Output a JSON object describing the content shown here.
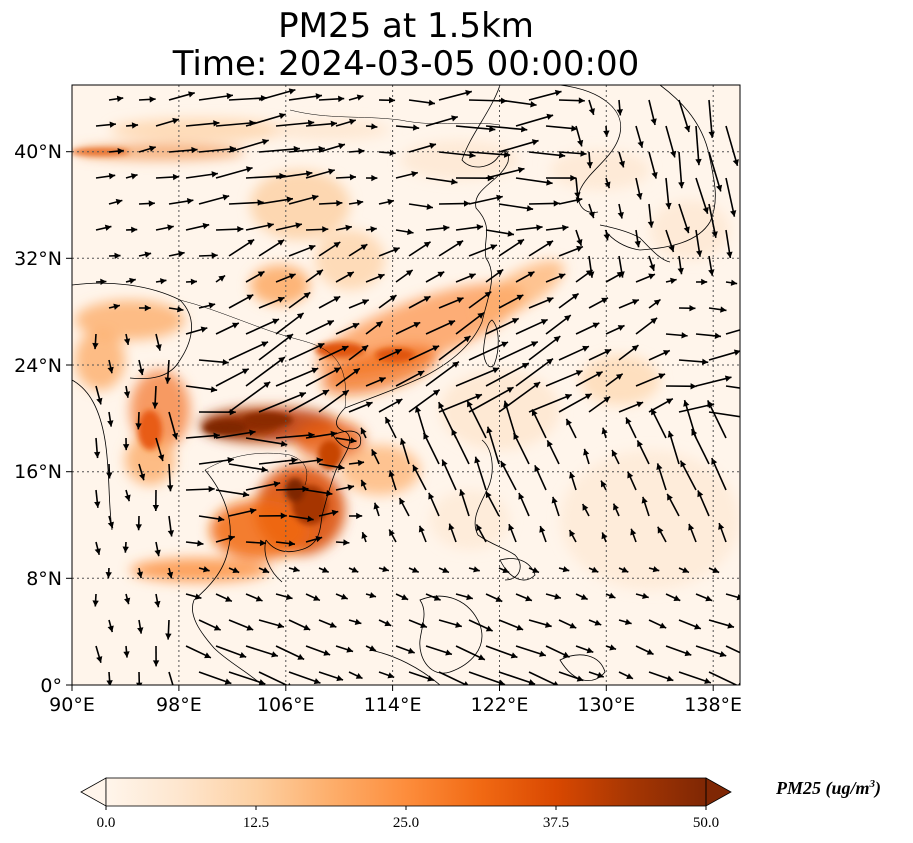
{
  "title_line1": "PM25 at 1.5km",
  "title_line2": "Time: 2024-03-05 00:00:00",
  "map": {
    "lon_range": [
      90,
      140
    ],
    "lat_range": [
      0,
      45
    ],
    "lon_ticks": [
      "90°E",
      "98°E",
      "106°E",
      "114°E",
      "122°E",
      "130°E",
      "138°E"
    ],
    "lat_ticks": [
      "0°",
      "8°N",
      "16°N",
      "24°N",
      "32°N",
      "40°N"
    ],
    "gridlines": "dotted",
    "vectors": "wind"
  },
  "colorbar": {
    "label_text": "PM25 (ug/m",
    "label_sup": "3",
    "label_close": ")",
    "ticks": [
      "0.0",
      "12.5",
      "25.0",
      "37.5",
      "50.0"
    ],
    "range": [
      0,
      50
    ],
    "extend": "both",
    "colors": [
      "#fff5eb",
      "#fee6ce",
      "#fdd0a2",
      "#fdae6b",
      "#fd8d3c",
      "#f16913",
      "#d94801",
      "#a63603",
      "#7f2704"
    ]
  }
}
